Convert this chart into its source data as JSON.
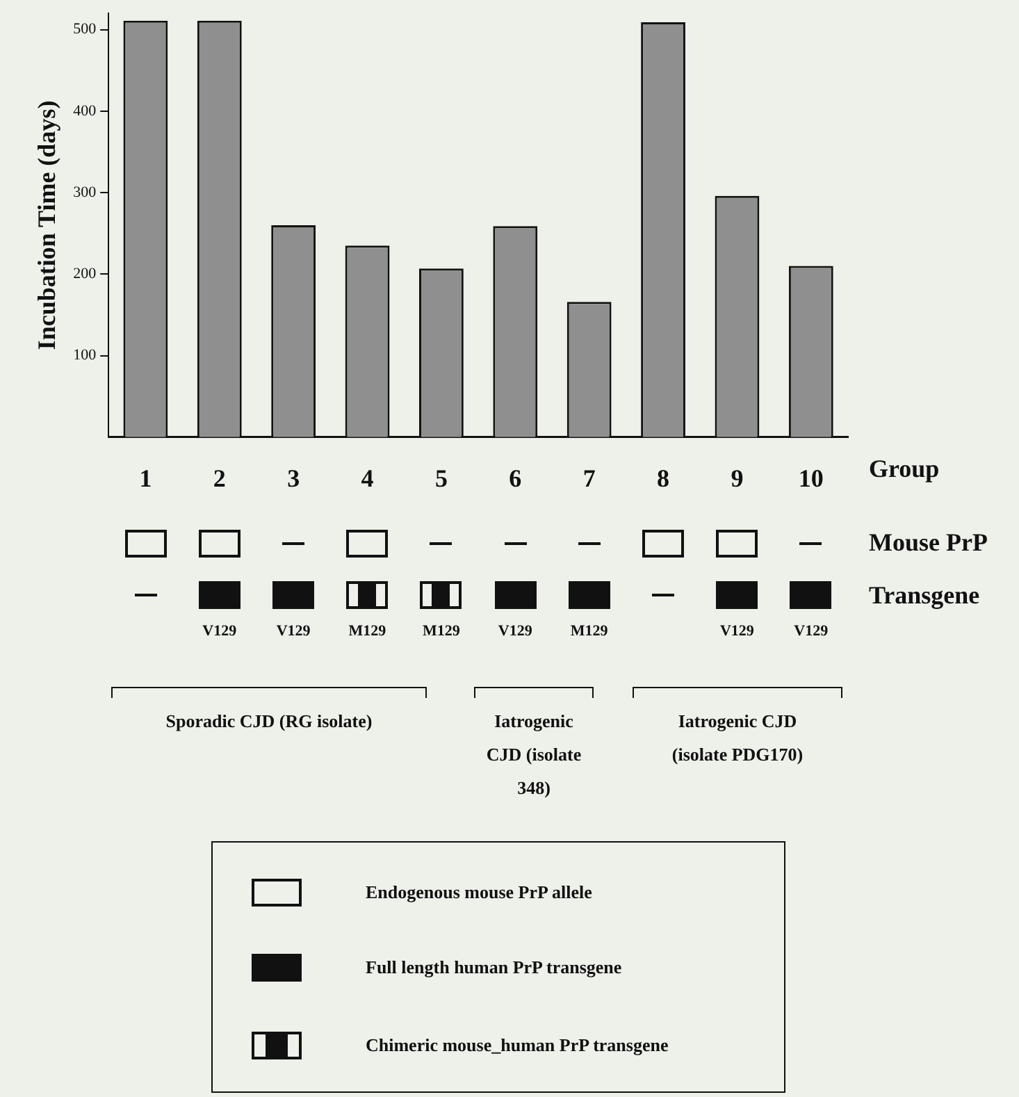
{
  "chart_data": {
    "type": "bar",
    "categories": [
      "1",
      "2",
      "3",
      "4",
      "5",
      "6",
      "7",
      "8",
      "9",
      "10"
    ],
    "values": [
      511,
      511,
      260,
      235,
      207,
      259,
      166,
      509,
      296,
      210
    ],
    "color": "#8f8f8f",
    "ylabel": "Incubation Time (days)",
    "xlabel": "Group",
    "ylim": [
      0,
      520
    ],
    "yticks": [
      100,
      200,
      300,
      400,
      500
    ],
    "annotations": [
      "Mouse PrP",
      "Transgene",
      "V129",
      "V129",
      "M129",
      "M129",
      "V129",
      "M129",
      "V129",
      "V129",
      "Sporadic CJD (RG isolate)",
      "Iatrogenic CJD (isolate 348)",
      "Iatrogenic CJD (isolate PDG170)",
      "Endogenous mouse PrP allele",
      "Full length human PrP transgene",
      "Chimeric mouse_human PrP transgene"
    ]
  }
}
